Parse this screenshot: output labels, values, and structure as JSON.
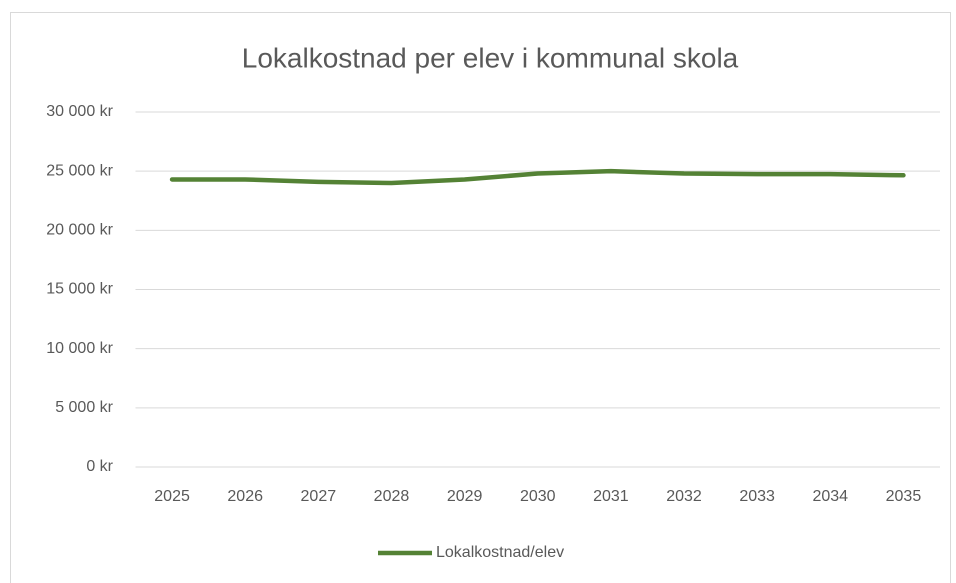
{
  "chart_data": {
    "type": "line",
    "title": "Lokalkostnad per elev i kommunal skola",
    "categories": [
      "2025",
      "2026",
      "2027",
      "2028",
      "2029",
      "2030",
      "2031",
      "2032",
      "2033",
      "2034",
      "2035"
    ],
    "series": [
      {
        "name": "Lokalkostnad/elev",
        "color": "#548235",
        "values": [
          24300,
          24300,
          24100,
          24000,
          24300,
          24800,
          25000,
          24800,
          24750,
          24750,
          24650
        ]
      }
    ],
    "ylim": [
      0,
      30000
    ],
    "yticks": [
      {
        "value": 0,
        "label": "0 kr"
      },
      {
        "value": 5000,
        "label": "5 000 kr"
      },
      {
        "value": 10000,
        "label": "10 000 kr"
      },
      {
        "value": 15000,
        "label": "15 000 kr"
      },
      {
        "value": 20000,
        "label": "20 000 kr"
      },
      {
        "value": 25000,
        "label": "25 000 kr"
      },
      {
        "value": 30000,
        "label": "30 000 kr"
      }
    ],
    "grid": true,
    "legend": "bottom"
  }
}
